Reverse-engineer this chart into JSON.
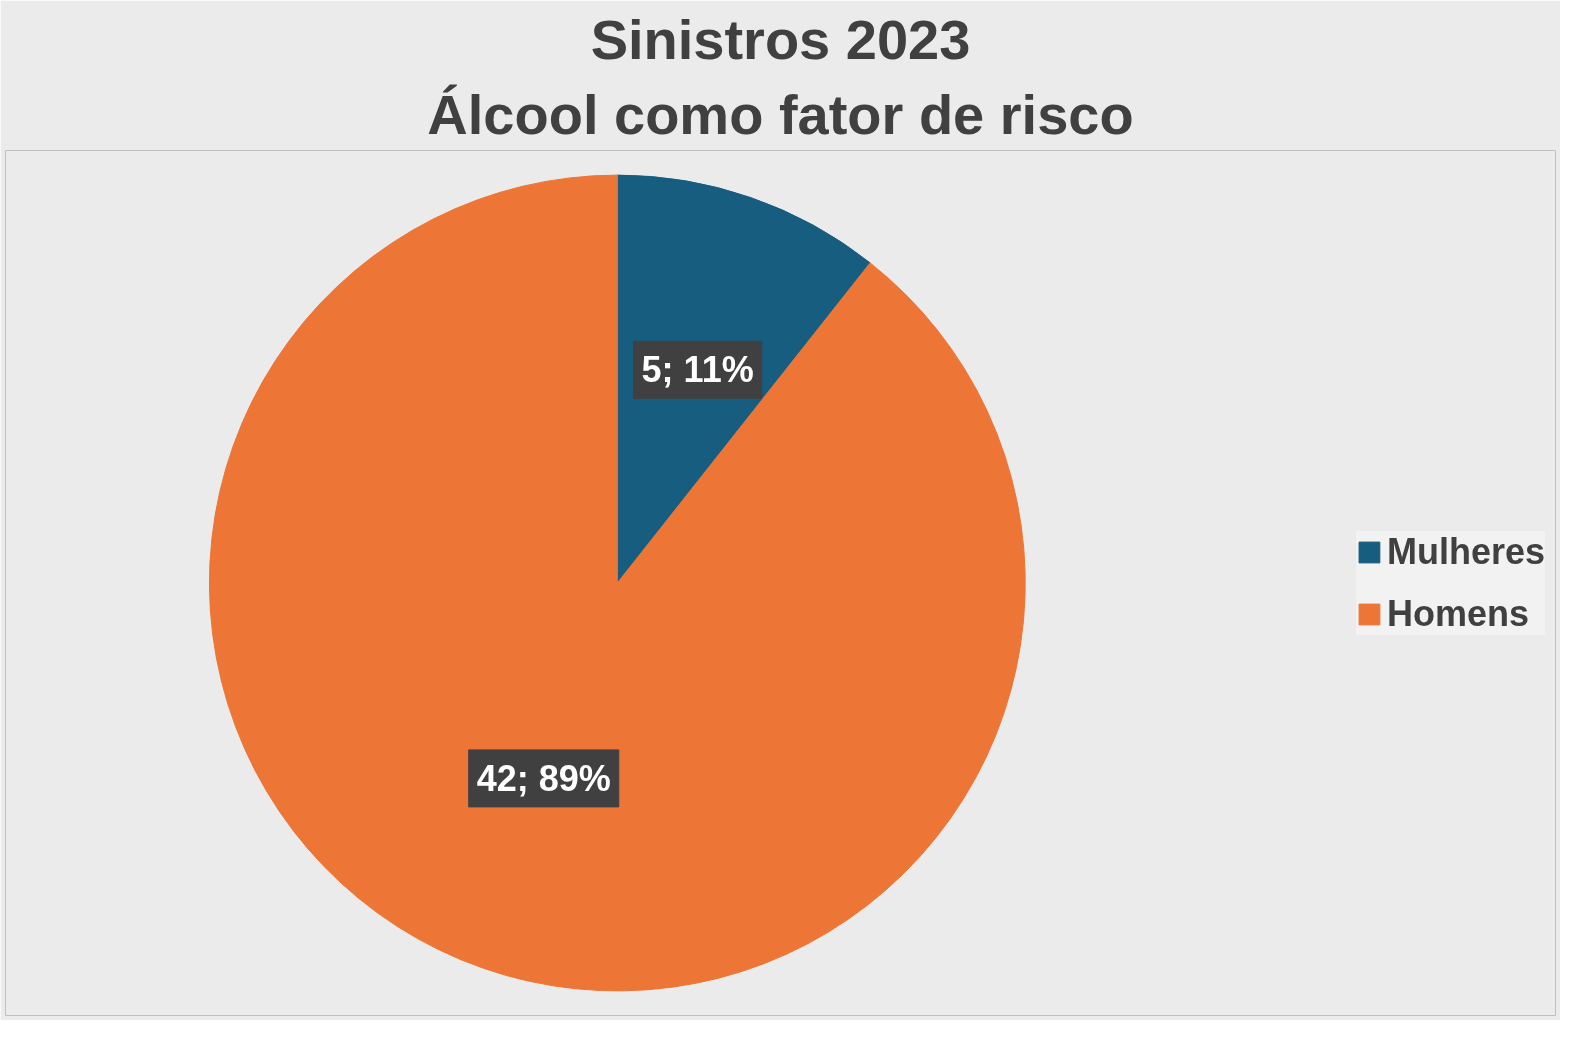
{
  "chart_data": {
    "type": "pie",
    "title": "Sinistros 2023",
    "subtitle": "Álcool como fator de risco",
    "categories": [
      "Mulheres",
      "Homens"
    ],
    "values": [
      5,
      42
    ],
    "colors": [
      "#175d80",
      "#ed7535"
    ],
    "value_labels": [
      "5; 11%",
      "42; 89%"
    ],
    "legend": "right"
  }
}
